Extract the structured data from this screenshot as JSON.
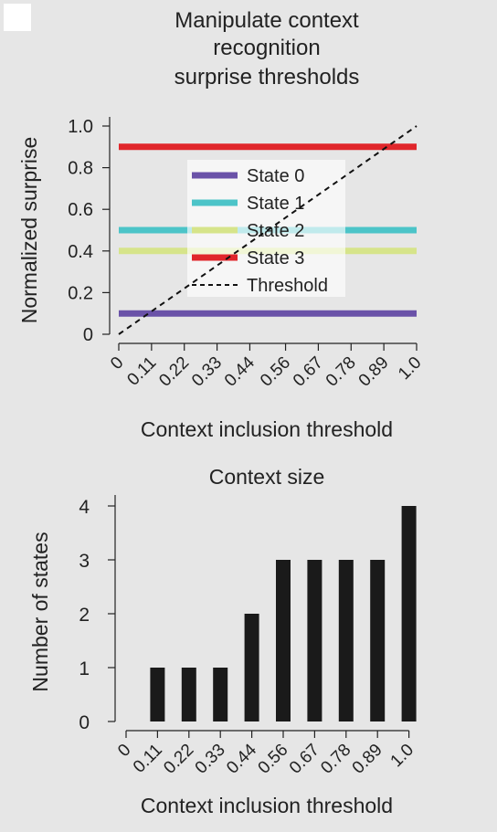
{
  "chart_data": [
    {
      "type": "line",
      "title_lines": [
        "Manipulate context",
        "recognition",
        "surprise thresholds"
      ],
      "xlabel": "Context inclusion threshold",
      "ylabel": "Normalized surprise",
      "categories": [
        "0",
        "0.11",
        "0.22",
        "0.33",
        "0.44",
        "0.56",
        "0.67",
        "0.78",
        "0.89",
        "1.0"
      ],
      "x": [
        0,
        0.11,
        0.22,
        0.33,
        0.44,
        0.56,
        0.67,
        0.78,
        0.89,
        1.0
      ],
      "xlim": [
        0,
        1.0
      ],
      "ylim": [
        0,
        1.0
      ],
      "yticks": [
        0,
        0.2,
        0.4,
        0.6,
        0.8,
        1.0
      ],
      "ytick_labels": [
        "0",
        "0.2",
        "0.4",
        "0.6",
        "0.8",
        "1.0"
      ],
      "series": [
        {
          "name": "State 0",
          "y": 0.1,
          "color": "#6a52a8",
          "style": "solid"
        },
        {
          "name": "State 1",
          "y": 0.5,
          "color": "#4cc4c8",
          "style": "solid"
        },
        {
          "name": "State 2",
          "y": 0.4,
          "color": "#d6e48a",
          "style": "solid"
        },
        {
          "name": "State 3",
          "y": 0.9,
          "color": "#e0262b",
          "style": "solid"
        },
        {
          "name": "Threshold",
          "from": [
            0,
            0
          ],
          "to": [
            1.0,
            1.0
          ],
          "color": "#111111",
          "style": "dashed"
        }
      ],
      "legend_position": "center"
    },
    {
      "type": "bar",
      "title": "Context size",
      "xlabel": "Context inclusion threshold",
      "ylabel": "Number of states",
      "categories": [
        "0",
        "0.11",
        "0.22",
        "0.33",
        "0.44",
        "0.56",
        "0.67",
        "0.78",
        "0.89",
        "1.0"
      ],
      "values": [
        0,
        1,
        1,
        1,
        2,
        3,
        3,
        3,
        3,
        4
      ],
      "ylim": [
        0,
        4
      ],
      "yticks": [
        0,
        1,
        2,
        3,
        4
      ],
      "ytick_labels": [
        "0",
        "1",
        "2",
        "3",
        "4"
      ],
      "bar_color": "#1a1a1a"
    }
  ]
}
